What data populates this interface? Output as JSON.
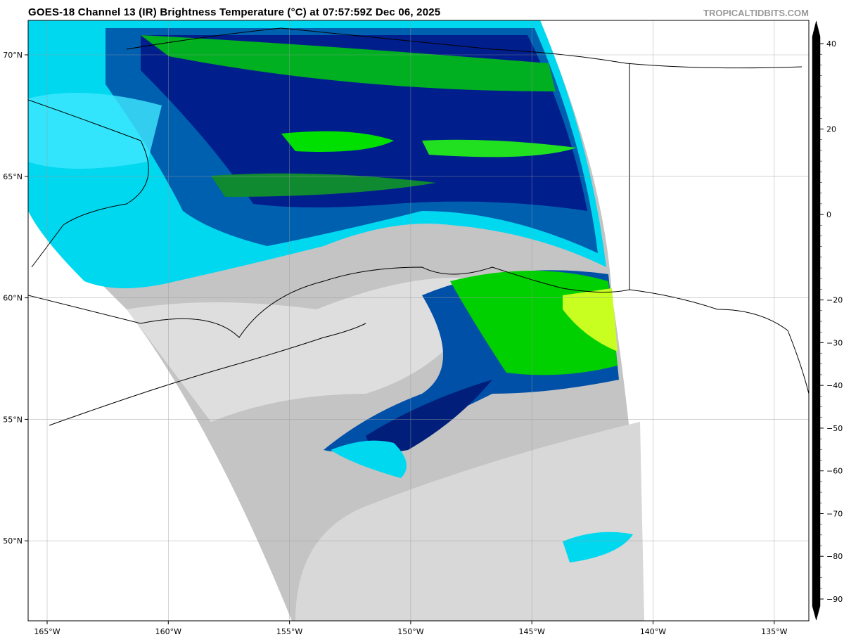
{
  "header": {
    "title": "GOES-18 Channel 13 (IR) Brightness Temperature (°C) at 07:57:59Z Dec 06, 2025",
    "watermark": "TROPICALTIDBITS.COM"
  },
  "map": {
    "lon_ticks": [
      "165°W",
      "160°W",
      "155°W",
      "150°W",
      "145°W",
      "140°W",
      "135°W"
    ],
    "lat_ticks": [
      "70°N",
      "65°N",
      "60°N",
      "55°N",
      "50°N"
    ],
    "grid": true,
    "background_color": "#ffffff",
    "coastline_color": "#000000"
  },
  "colorbar": {
    "ticks": [
      "40",
      "20",
      "0",
      "−20",
      "−30",
      "−40",
      "−50",
      "−60",
      "−70",
      "−80",
      "−90"
    ],
    "tick_values": [
      40,
      20,
      0,
      -20,
      -30,
      -40,
      -50,
      -60,
      -70,
      -80,
      -90
    ],
    "stops": [
      {
        "v": 45,
        "c": "#000000"
      },
      {
        "v": 20,
        "c": "#555555"
      },
      {
        "v": 0,
        "c": "#c8c8c8"
      },
      {
        "v": -20,
        "c": "#ffffff"
      },
      {
        "v": -20.01,
        "c": "#00ffff"
      },
      {
        "v": -25,
        "c": "#0078c8"
      },
      {
        "v": -30,
        "c": "#000080"
      },
      {
        "v": -34,
        "c": "#005a46"
      },
      {
        "v": -36,
        "c": "#00a028"
      },
      {
        "v": -40,
        "c": "#00ff00"
      },
      {
        "v": -50,
        "c": "#ffff00"
      },
      {
        "v": -55,
        "c": "#ff9000"
      },
      {
        "v": -60,
        "c": "#ff0000"
      },
      {
        "v": -65,
        "c": "#900000"
      },
      {
        "v": -70,
        "c": "#000000"
      },
      {
        "v": -75,
        "c": "#707070"
      },
      {
        "v": -80,
        "c": "#e6e6e6"
      },
      {
        "v": -80.01,
        "c": "#ff78c8"
      },
      {
        "v": -95,
        "c": "#780078"
      }
    ]
  }
}
